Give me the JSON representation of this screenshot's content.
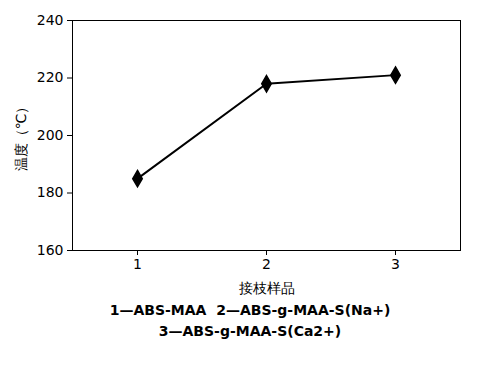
{
  "chart_data": {
    "type": "line",
    "x_label": "接枝样品",
    "y_label": "温度（℃）",
    "categories": [
      "1",
      "2",
      "3"
    ],
    "values": [
      185,
      218,
      221
    ],
    "color": "#000000",
    "marker": "diamond",
    "ylim": [
      160,
      240
    ],
    "yticks": [
      160,
      180,
      200,
      220,
      240
    ],
    "grid": false,
    "annotations": [
      "1—ABS-MAA  2—ABS-g-MAA-S(Na+)",
      "3—ABS-g-MAA-S(Ca2+)"
    ]
  }
}
